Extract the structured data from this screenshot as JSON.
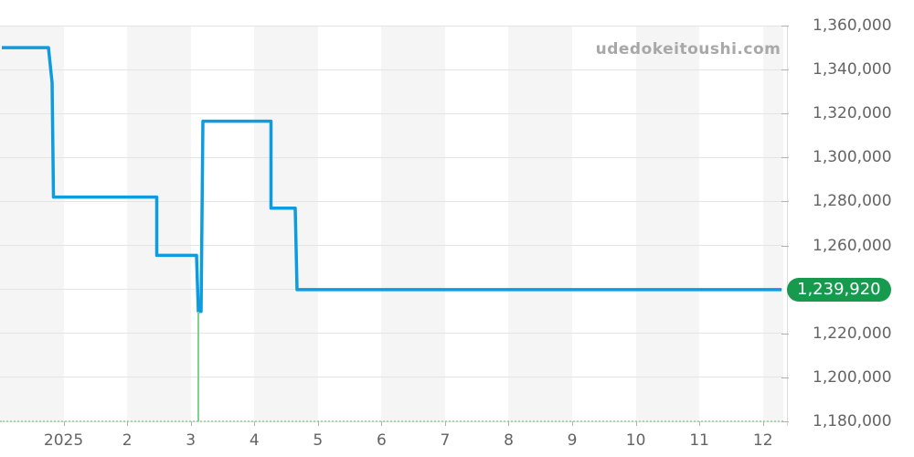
{
  "watermark": "udedokeitoushi.com",
  "badge": {
    "label": "1,239,920",
    "color": "#169b4e",
    "text_color": "#ffffff"
  },
  "chart_data": {
    "type": "line",
    "title": "",
    "xlabel": "",
    "ylabel": "",
    "legend": "none",
    "line_color": "#0d9cdf",
    "line_width": 3.5,
    "band_color": "#f5f5f5",
    "grid_color": "#e4e4e4",
    "baseline_color": "#a9d8ac",
    "xlim": [
      0,
      12.32
    ],
    "ylim": [
      1180000,
      1360000
    ],
    "xticks": [
      {
        "x": 1,
        "label": "2025"
      },
      {
        "x": 2,
        "label": "2"
      },
      {
        "x": 3,
        "label": "3"
      },
      {
        "x": 4,
        "label": "4"
      },
      {
        "x": 5,
        "label": "5"
      },
      {
        "x": 6,
        "label": "6"
      },
      {
        "x": 7,
        "label": "7"
      },
      {
        "x": 8,
        "label": "8"
      },
      {
        "x": 9,
        "label": "9"
      },
      {
        "x": 10,
        "label": "10"
      },
      {
        "x": 11,
        "label": "11"
      },
      {
        "x": 12,
        "label": "12"
      }
    ],
    "yticks": [
      {
        "value": 1360000,
        "label": "1,360,000"
      },
      {
        "value": 1340000,
        "label": "1,340,000"
      },
      {
        "value": 1320000,
        "label": "1,320,000"
      },
      {
        "value": 1300000,
        "label": "1,300,000"
      },
      {
        "value": 1280000,
        "label": "1,280,000"
      },
      {
        "value": 1260000,
        "label": "1,260,000"
      },
      {
        "value": 1220000,
        "label": "1,220,000"
      },
      {
        "value": 1200000,
        "label": "1,200,000"
      },
      {
        "value": 1180000,
        "label": "1,180,000"
      }
    ],
    "points": [
      [
        0.029,
        1350000
      ],
      [
        0.762,
        1350000
      ],
      [
        0.82,
        1334000
      ],
      [
        0.841,
        1282000
      ],
      [
        2.466,
        1282000
      ],
      [
        2.466,
        1255500
      ],
      [
        3.091,
        1255500
      ],
      [
        3.12,
        1230000
      ],
      [
        3.163,
        1230000
      ],
      [
        3.192,
        1316500
      ],
      [
        4.263,
        1316500
      ],
      [
        4.263,
        1277000
      ],
      [
        4.644,
        1277000
      ],
      [
        4.672,
        1239920
      ],
      [
        12.292,
        1239920
      ]
    ],
    "marker_line": {
      "x": 3.12,
      "from_value": 1230000,
      "color": "#7fd18f"
    },
    "current_value": 1239920
  }
}
